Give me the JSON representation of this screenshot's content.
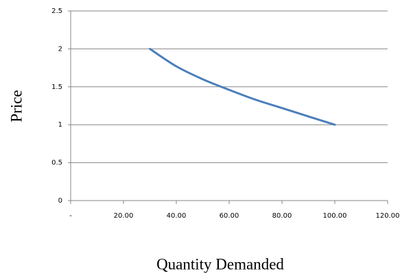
{
  "chart_data": {
    "type": "line",
    "x_label": "Quantity Demanded",
    "y_label": "Price",
    "x": [
      30,
      40,
      50,
      60,
      70,
      80,
      90,
      100
    ],
    "values": [
      2,
      1.77,
      1.6,
      1.46,
      1.33,
      1.22,
      1.11,
      1
    ],
    "color": "#4a7ebb",
    "xlim": [
      0,
      120
    ],
    "xticks": [
      {
        "value": 0,
        "label": "-"
      },
      {
        "value": 20,
        "label": "20.00"
      },
      {
        "value": 40,
        "label": "40.00"
      },
      {
        "value": 60,
        "label": "60.00"
      },
      {
        "value": 80,
        "label": "80.00"
      },
      {
        "value": 100,
        "label": "100.00"
      },
      {
        "value": 120,
        "label": "120.00"
      }
    ],
    "ylim": [
      0,
      2.5
    ],
    "yticks": [
      0,
      0.5,
      1,
      1.5,
      2,
      2.5
    ],
    "grid": true
  }
}
